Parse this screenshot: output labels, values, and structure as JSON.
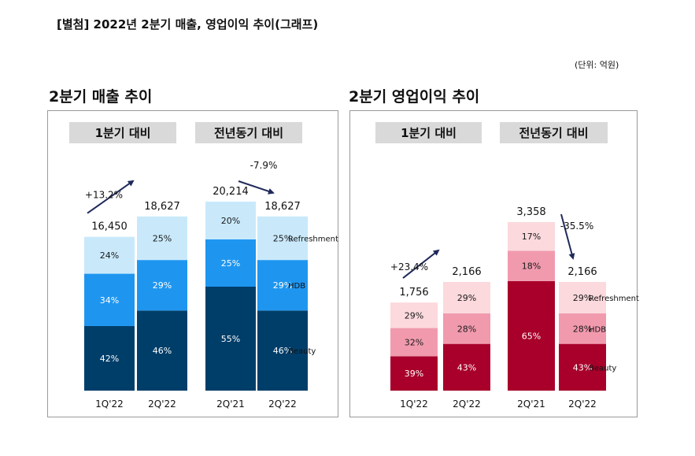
{
  "header": {
    "title": "[별첨] 2022년 2분기 매출, 영업이익 추이(그래프)",
    "unit": "(단위: 억원)"
  },
  "colors": {
    "sales_beauty": "#003e6a",
    "sales_hdb": "#1e96f0",
    "sales_refresh": "#c9e9fb",
    "op_beauty": "#a8002a",
    "op_hdb": "#f19aae",
    "op_refresh": "#fbd9dd",
    "header_bg": "#d9d9d9",
    "arrow": "#1f2a5a"
  },
  "chart_data": [
    {
      "type": "bar",
      "stacked": true,
      "title": "2분기 매출 추이",
      "groups": [
        {
          "label": "1분기 대비",
          "categories": [
            "1Q'22",
            "2Q'22"
          ],
          "totals": [
            "16,450",
            "18,627"
          ],
          "change": "+13.2%"
        },
        {
          "label": "전년동기 대비",
          "categories": [
            "2Q'21",
            "2Q'22"
          ],
          "totals": [
            "20,214",
            "18,627"
          ],
          "change": "-7.9%"
        }
      ],
      "series": [
        {
          "name": "Beauty",
          "values": [
            42,
            46,
            55,
            46
          ],
          "labels": [
            "42%",
            "46%",
            "55%",
            "46%"
          ]
        },
        {
          "name": "HDB",
          "values": [
            34,
            29,
            25,
            29
          ],
          "labels": [
            "34%",
            "29%",
            "25%",
            "29%"
          ]
        },
        {
          "name": "Refreshment",
          "values": [
            24,
            25,
            20,
            25
          ],
          "labels": [
            "24%",
            "25%",
            "20%",
            "25%"
          ]
        }
      ],
      "category_totals": [
        16450,
        18627,
        20214,
        18627
      ]
    },
    {
      "type": "bar",
      "stacked": true,
      "title": "2분기 영업이익 추이",
      "groups": [
        {
          "label": "1분기 대비",
          "categories": [
            "1Q'22",
            "2Q'22"
          ],
          "totals": [
            "1,756",
            "2,166"
          ],
          "change": "+23.4%"
        },
        {
          "label": "전년동기 대비",
          "categories": [
            "2Q'21",
            "2Q'22"
          ],
          "totals": [
            "3,358",
            "2,166"
          ],
          "change": "-35.5%"
        }
      ],
      "series": [
        {
          "name": "Beauty",
          "values": [
            39,
            43,
            65,
            43
          ],
          "labels": [
            "39%",
            "43%",
            "65%",
            "43%"
          ]
        },
        {
          "name": "HDB",
          "values": [
            32,
            28,
            18,
            28
          ],
          "labels": [
            "32%",
            "28%",
            "18%",
            "28%"
          ]
        },
        {
          "name": "Refreshment",
          "values": [
            29,
            29,
            17,
            29
          ],
          "labels": [
            "29%",
            "29%",
            "17%",
            "29%"
          ]
        }
      ],
      "category_totals": [
        1756,
        2166,
        3358,
        2166
      ]
    }
  ]
}
